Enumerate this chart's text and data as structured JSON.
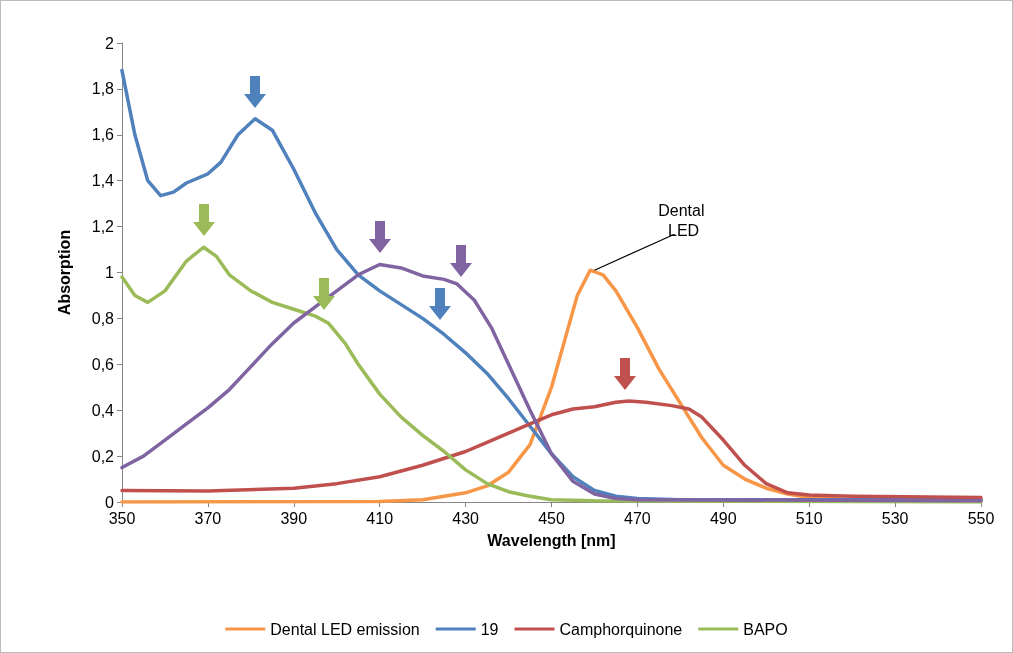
{
  "chart_data": {
    "type": "line",
    "xlabel": "Wavelength [nm]",
    "ylabel": "Absorption",
    "xlim": [
      350,
      550
    ],
    "xticks": [
      350,
      370,
      390,
      410,
      430,
      450,
      470,
      490,
      510,
      530,
      550
    ],
    "ylim": [
      0,
      2
    ],
    "yticks": [
      0,
      {
        "value": 0.2,
        "label": "0,2"
      },
      {
        "value": 0.4,
        "label": "0,4"
      },
      {
        "value": 0.6,
        "label": "0,6"
      },
      {
        "value": 0.8,
        "label": "0,8"
      },
      1,
      {
        "value": 1.2,
        "label": "1,2"
      },
      {
        "value": 1.4,
        "label": "1,4"
      },
      {
        "value": 1.6,
        "label": "1,6"
      },
      {
        "value": 1.8,
        "label": "1,8"
      },
      2
    ],
    "grid": false,
    "legend": "bottom",
    "marker": "none",
    "line_style": "solid",
    "annotations": [
      {
        "text": "Dental LED",
        "x": 460,
        "y": 1.01
      }
    ],
    "series": [
      {
        "name": "Dental LED emission",
        "color": "#f79646",
        "x": [
          350,
          410,
          420,
          430,
          435,
          440,
          445,
          450,
          453,
          456,
          459,
          462,
          465,
          470,
          475,
          480,
          485,
          490,
          495,
          500,
          505,
          510,
          520,
          550
        ],
        "values": [
          0,
          0.002,
          0.01,
          0.04,
          0.07,
          0.13,
          0.25,
          0.5,
          0.7,
          0.9,
          1.01,
          0.99,
          0.92,
          0.76,
          0.58,
          0.43,
          0.28,
          0.16,
          0.1,
          0.06,
          0.035,
          0.02,
          0.01,
          0.005
        ]
      },
      {
        "name": "19",
        "color": "#4f81bd",
        "x": [
          350,
          353,
          356,
          359,
          362,
          365,
          370,
          373,
          377,
          381,
          385,
          390,
          395,
          400,
          405,
          410,
          415,
          420,
          425,
          430,
          435,
          440,
          445,
          450,
          455,
          460,
          465,
          470,
          480,
          500,
          550
        ],
        "values": [
          1.88,
          1.6,
          1.4,
          1.335,
          1.35,
          1.39,
          1.43,
          1.48,
          1.6,
          1.67,
          1.62,
          1.45,
          1.26,
          1.1,
          0.99,
          0.92,
          0.86,
          0.8,
          0.73,
          0.65,
          0.56,
          0.45,
          0.33,
          0.21,
          0.11,
          0.05,
          0.025,
          0.015,
          0.01,
          0.01,
          0.01
        ]
      },
      {
        "name": "Camphorquinone",
        "color": "#c0504d",
        "x": [
          350,
          370,
          390,
          400,
          410,
          420,
          430,
          435,
          440,
          445,
          450,
          455,
          460,
          465,
          468,
          472,
          478,
          482,
          485,
          490,
          495,
          500,
          505,
          510,
          520,
          550
        ],
        "values": [
          0.05,
          0.048,
          0.06,
          0.08,
          0.11,
          0.16,
          0.22,
          0.26,
          0.3,
          0.34,
          0.38,
          0.405,
          0.415,
          0.435,
          0.44,
          0.435,
          0.42,
          0.405,
          0.37,
          0.27,
          0.16,
          0.08,
          0.04,
          0.03,
          0.025,
          0.02
        ]
      },
      {
        "name": "BAPO",
        "color": "#9bbb59",
        "x": [
          350,
          353,
          356,
          360,
          365,
          369,
          372,
          375,
          380,
          385,
          390,
          395,
          398,
          402,
          405,
          410,
          415,
          420,
          425,
          430,
          435,
          440,
          445,
          450,
          460,
          550
        ],
        "values": [
          0.98,
          0.9,
          0.87,
          0.92,
          1.05,
          1.11,
          1.07,
          0.99,
          0.92,
          0.87,
          0.84,
          0.81,
          0.78,
          0.69,
          0.6,
          0.47,
          0.37,
          0.29,
          0.22,
          0.14,
          0.08,
          0.045,
          0.025,
          0.01,
          0.005,
          0
        ]
      },
      {
        "color": "#8064a2",
        "x": [
          350,
          355,
          360,
          365,
          370,
          375,
          380,
          385,
          390,
          395,
          400,
          405,
          410,
          415,
          420,
          425,
          428,
          432,
          436,
          440,
          445,
          450,
          455,
          460,
          465,
          470,
          550
        ],
        "values": [
          0.15,
          0.2,
          0.27,
          0.34,
          0.41,
          0.49,
          0.59,
          0.69,
          0.78,
          0.85,
          0.92,
          0.99,
          1.035,
          1.02,
          0.985,
          0.97,
          0.95,
          0.88,
          0.76,
          0.6,
          0.4,
          0.21,
          0.09,
          0.035,
          0.015,
          0.01,
          0.005
        ]
      }
    ]
  }
}
